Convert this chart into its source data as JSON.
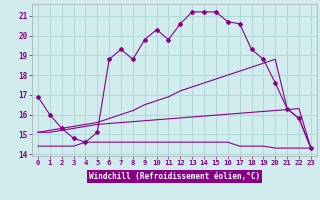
{
  "xlabel": "Windchill (Refroidissement éolien,°C)",
  "background_color": "#d0ecec",
  "grid_color": "#b0d8d8",
  "line_color": "#880088",
  "axis_label_bg": "#8800aa",
  "xlim": [
    -0.5,
    23.5
  ],
  "ylim": [
    13.9,
    21.6
  ],
  "yticks": [
    14,
    15,
    16,
    17,
    18,
    19,
    20,
    21
  ],
  "xticks": [
    0,
    1,
    2,
    3,
    4,
    5,
    6,
    7,
    8,
    9,
    10,
    11,
    12,
    13,
    14,
    15,
    16,
    17,
    18,
    19,
    20,
    21,
    22,
    23
  ],
  "series": [
    {
      "x": [
        0,
        1,
        2,
        3,
        4,
        5,
        6,
        7,
        8,
        9,
        10,
        11,
        12,
        13,
        14,
        15,
        16,
        17,
        18,
        19,
        20,
        21,
        22,
        23
      ],
      "y": [
        16.9,
        16.0,
        15.3,
        14.8,
        14.6,
        15.1,
        18.8,
        19.3,
        18.8,
        19.8,
        20.3,
        19.8,
        20.6,
        21.2,
        21.2,
        21.2,
        20.7,
        20.6,
        19.3,
        18.8,
        17.6,
        16.3,
        15.8,
        14.3
      ],
      "marker": true
    },
    {
      "x": [
        0,
        1,
        2,
        3,
        4,
        5,
        22,
        23
      ],
      "y": [
        15.1,
        15.1,
        15.2,
        15.3,
        15.4,
        15.5,
        16.3,
        14.3
      ],
      "marker": false
    },
    {
      "x": [
        0,
        1,
        2,
        3,
        4,
        5,
        6,
        7,
        8,
        9,
        10,
        11,
        12,
        13,
        14,
        15,
        16,
        17,
        18,
        19,
        20,
        21,
        22,
        23
      ],
      "y": [
        15.1,
        15.2,
        15.3,
        15.4,
        15.5,
        15.6,
        15.8,
        16.0,
        16.2,
        16.5,
        16.7,
        16.9,
        17.2,
        17.4,
        17.6,
        17.8,
        18.0,
        18.2,
        18.4,
        18.6,
        18.8,
        16.3,
        15.8,
        14.3
      ],
      "marker": false
    },
    {
      "x": [
        0,
        1,
        2,
        3,
        4,
        5,
        6,
        7,
        8,
        9,
        10,
        11,
        12,
        13,
        14,
        15,
        16,
        17,
        18,
        19,
        20,
        22,
        23
      ],
      "y": [
        14.4,
        14.4,
        14.4,
        14.4,
        14.6,
        14.6,
        14.6,
        14.6,
        14.6,
        14.6,
        14.6,
        14.6,
        14.6,
        14.6,
        14.6,
        14.6,
        14.6,
        14.4,
        14.4,
        14.4,
        14.3,
        14.3,
        14.3
      ],
      "marker": false
    }
  ]
}
